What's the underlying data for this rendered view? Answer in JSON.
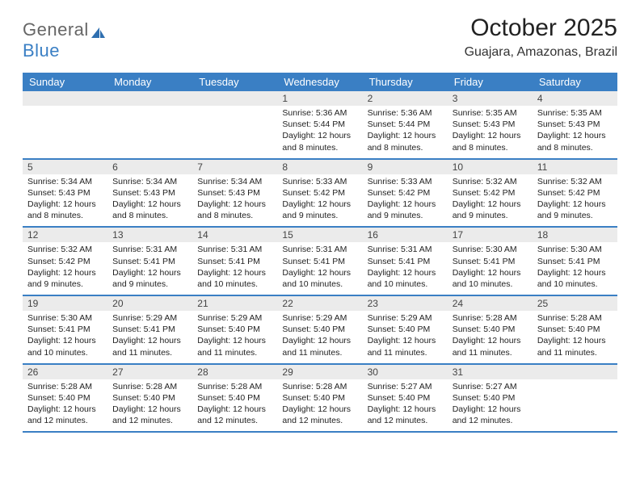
{
  "brand": {
    "general": "General",
    "blue": "Blue"
  },
  "title": "October 2025",
  "location": "Guajara, Amazonas, Brazil",
  "colors": {
    "header_bg": "#3a7fc4",
    "daynum_bg": "#ebebeb",
    "page_bg": "#ffffff",
    "text": "#222222",
    "brand_gray": "#666666",
    "brand_blue": "#3a7fc4"
  },
  "dayHeaders": [
    "Sunday",
    "Monday",
    "Tuesday",
    "Wednesday",
    "Thursday",
    "Friday",
    "Saturday"
  ],
  "weeks": [
    [
      null,
      null,
      null,
      {
        "n": "1",
        "sr": "Sunrise: 5:36 AM",
        "ss": "Sunset: 5:44 PM",
        "dl1": "Daylight: 12 hours",
        "dl2": "and 8 minutes."
      },
      {
        "n": "2",
        "sr": "Sunrise: 5:36 AM",
        "ss": "Sunset: 5:44 PM",
        "dl1": "Daylight: 12 hours",
        "dl2": "and 8 minutes."
      },
      {
        "n": "3",
        "sr": "Sunrise: 5:35 AM",
        "ss": "Sunset: 5:43 PM",
        "dl1": "Daylight: 12 hours",
        "dl2": "and 8 minutes."
      },
      {
        "n": "4",
        "sr": "Sunrise: 5:35 AM",
        "ss": "Sunset: 5:43 PM",
        "dl1": "Daylight: 12 hours",
        "dl2": "and 8 minutes."
      }
    ],
    [
      {
        "n": "5",
        "sr": "Sunrise: 5:34 AM",
        "ss": "Sunset: 5:43 PM",
        "dl1": "Daylight: 12 hours",
        "dl2": "and 8 minutes."
      },
      {
        "n": "6",
        "sr": "Sunrise: 5:34 AM",
        "ss": "Sunset: 5:43 PM",
        "dl1": "Daylight: 12 hours",
        "dl2": "and 8 minutes."
      },
      {
        "n": "7",
        "sr": "Sunrise: 5:34 AM",
        "ss": "Sunset: 5:43 PM",
        "dl1": "Daylight: 12 hours",
        "dl2": "and 8 minutes."
      },
      {
        "n": "8",
        "sr": "Sunrise: 5:33 AM",
        "ss": "Sunset: 5:42 PM",
        "dl1": "Daylight: 12 hours",
        "dl2": "and 9 minutes."
      },
      {
        "n": "9",
        "sr": "Sunrise: 5:33 AM",
        "ss": "Sunset: 5:42 PM",
        "dl1": "Daylight: 12 hours",
        "dl2": "and 9 minutes."
      },
      {
        "n": "10",
        "sr": "Sunrise: 5:32 AM",
        "ss": "Sunset: 5:42 PM",
        "dl1": "Daylight: 12 hours",
        "dl2": "and 9 minutes."
      },
      {
        "n": "11",
        "sr": "Sunrise: 5:32 AM",
        "ss": "Sunset: 5:42 PM",
        "dl1": "Daylight: 12 hours",
        "dl2": "and 9 minutes."
      }
    ],
    [
      {
        "n": "12",
        "sr": "Sunrise: 5:32 AM",
        "ss": "Sunset: 5:42 PM",
        "dl1": "Daylight: 12 hours",
        "dl2": "and 9 minutes."
      },
      {
        "n": "13",
        "sr": "Sunrise: 5:31 AM",
        "ss": "Sunset: 5:41 PM",
        "dl1": "Daylight: 12 hours",
        "dl2": "and 9 minutes."
      },
      {
        "n": "14",
        "sr": "Sunrise: 5:31 AM",
        "ss": "Sunset: 5:41 PM",
        "dl1": "Daylight: 12 hours",
        "dl2": "and 10 minutes."
      },
      {
        "n": "15",
        "sr": "Sunrise: 5:31 AM",
        "ss": "Sunset: 5:41 PM",
        "dl1": "Daylight: 12 hours",
        "dl2": "and 10 minutes."
      },
      {
        "n": "16",
        "sr": "Sunrise: 5:31 AM",
        "ss": "Sunset: 5:41 PM",
        "dl1": "Daylight: 12 hours",
        "dl2": "and 10 minutes."
      },
      {
        "n": "17",
        "sr": "Sunrise: 5:30 AM",
        "ss": "Sunset: 5:41 PM",
        "dl1": "Daylight: 12 hours",
        "dl2": "and 10 minutes."
      },
      {
        "n": "18",
        "sr": "Sunrise: 5:30 AM",
        "ss": "Sunset: 5:41 PM",
        "dl1": "Daylight: 12 hours",
        "dl2": "and 10 minutes."
      }
    ],
    [
      {
        "n": "19",
        "sr": "Sunrise: 5:30 AM",
        "ss": "Sunset: 5:41 PM",
        "dl1": "Daylight: 12 hours",
        "dl2": "and 10 minutes."
      },
      {
        "n": "20",
        "sr": "Sunrise: 5:29 AM",
        "ss": "Sunset: 5:41 PM",
        "dl1": "Daylight: 12 hours",
        "dl2": "and 11 minutes."
      },
      {
        "n": "21",
        "sr": "Sunrise: 5:29 AM",
        "ss": "Sunset: 5:40 PM",
        "dl1": "Daylight: 12 hours",
        "dl2": "and 11 minutes."
      },
      {
        "n": "22",
        "sr": "Sunrise: 5:29 AM",
        "ss": "Sunset: 5:40 PM",
        "dl1": "Daylight: 12 hours",
        "dl2": "and 11 minutes."
      },
      {
        "n": "23",
        "sr": "Sunrise: 5:29 AM",
        "ss": "Sunset: 5:40 PM",
        "dl1": "Daylight: 12 hours",
        "dl2": "and 11 minutes."
      },
      {
        "n": "24",
        "sr": "Sunrise: 5:28 AM",
        "ss": "Sunset: 5:40 PM",
        "dl1": "Daylight: 12 hours",
        "dl2": "and 11 minutes."
      },
      {
        "n": "25",
        "sr": "Sunrise: 5:28 AM",
        "ss": "Sunset: 5:40 PM",
        "dl1": "Daylight: 12 hours",
        "dl2": "and 11 minutes."
      }
    ],
    [
      {
        "n": "26",
        "sr": "Sunrise: 5:28 AM",
        "ss": "Sunset: 5:40 PM",
        "dl1": "Daylight: 12 hours",
        "dl2": "and 12 minutes."
      },
      {
        "n": "27",
        "sr": "Sunrise: 5:28 AM",
        "ss": "Sunset: 5:40 PM",
        "dl1": "Daylight: 12 hours",
        "dl2": "and 12 minutes."
      },
      {
        "n": "28",
        "sr": "Sunrise: 5:28 AM",
        "ss": "Sunset: 5:40 PM",
        "dl1": "Daylight: 12 hours",
        "dl2": "and 12 minutes."
      },
      {
        "n": "29",
        "sr": "Sunrise: 5:28 AM",
        "ss": "Sunset: 5:40 PM",
        "dl1": "Daylight: 12 hours",
        "dl2": "and 12 minutes."
      },
      {
        "n": "30",
        "sr": "Sunrise: 5:27 AM",
        "ss": "Sunset: 5:40 PM",
        "dl1": "Daylight: 12 hours",
        "dl2": "and 12 minutes."
      },
      {
        "n": "31",
        "sr": "Sunrise: 5:27 AM",
        "ss": "Sunset: 5:40 PM",
        "dl1": "Daylight: 12 hours",
        "dl2": "and 12 minutes."
      },
      null
    ]
  ]
}
